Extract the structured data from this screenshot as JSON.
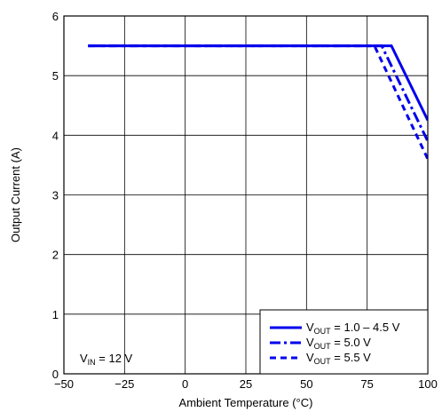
{
  "chart_data": {
    "type": "line",
    "xlabel": "Ambient Temperature (°C)",
    "ylabel": "Output Current (A)",
    "xlim": [
      -50,
      100
    ],
    "ylim": [
      0,
      6
    ],
    "x_ticks": [
      -50,
      -25,
      0,
      25,
      50,
      75,
      100
    ],
    "x_tick_labels": [
      "−50",
      "−25",
      "0",
      "25",
      "50",
      "75",
      "100"
    ],
    "y_ticks": [
      0,
      1,
      2,
      3,
      4,
      5,
      6
    ],
    "y_tick_labels": [
      "0",
      "1",
      "2",
      "3",
      "4",
      "5",
      "6"
    ],
    "grid": true,
    "legend_position": "bottom-right",
    "series": [
      {
        "name_main": "V",
        "name_sub": "OUT",
        "name_rest": " = 1.0 – 4.5 V",
        "line_style": "solid",
        "color": "#0000ee",
        "points": [
          [
            -40,
            5.5
          ],
          [
            85,
            5.5
          ],
          [
            100,
            4.25
          ]
        ]
      },
      {
        "name_main": "V",
        "name_sub": "OUT",
        "name_rest": " = 5.0 V",
        "line_style": "dash-dot",
        "color": "#0000ee",
        "points": [
          [
            -40,
            5.5
          ],
          [
            81,
            5.5
          ],
          [
            100,
            3.9
          ]
        ]
      },
      {
        "name_main": "V",
        "name_sub": "OUT",
        "name_rest": " = 5.5 V",
        "line_style": "dashed",
        "color": "#0000ee",
        "points": [
          [
            -40,
            5.5
          ],
          [
            78,
            5.5
          ],
          [
            100,
            3.6
          ]
        ]
      }
    ],
    "annotation": {
      "main": "V",
      "sub": "IN",
      "rest": " = 12 V"
    }
  }
}
